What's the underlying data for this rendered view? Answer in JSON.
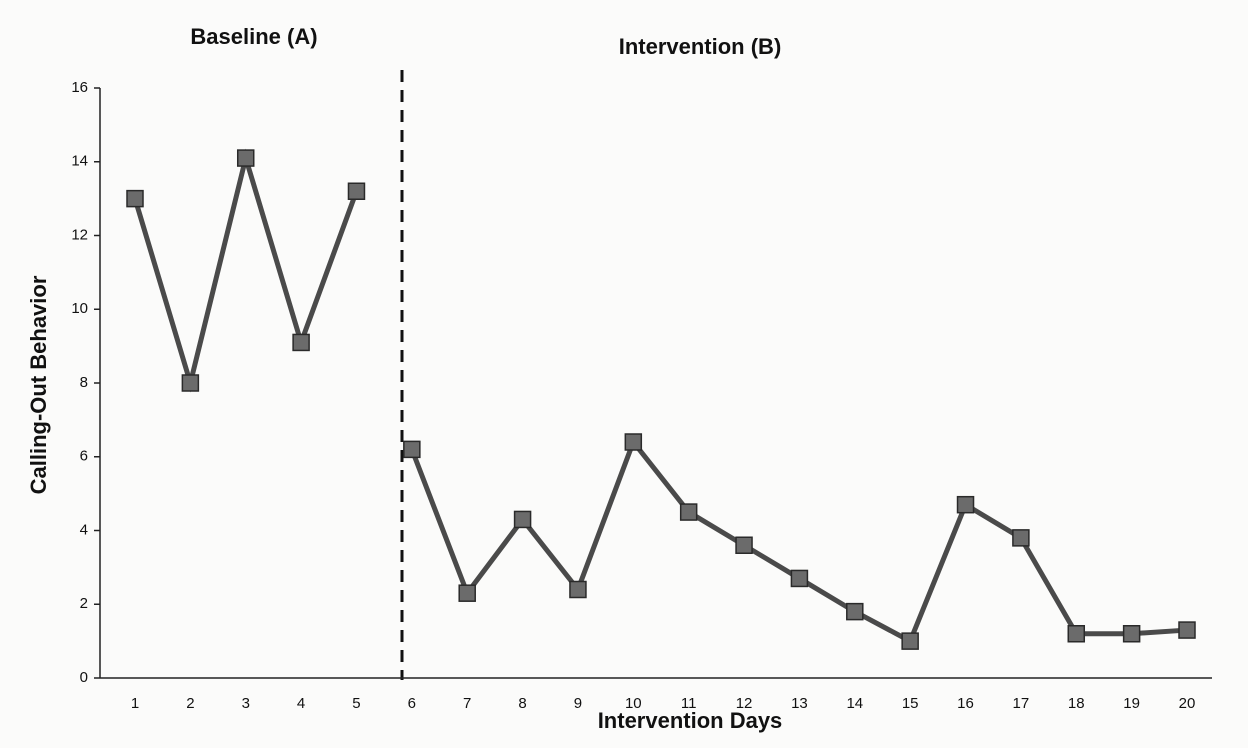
{
  "chart_data": {
    "type": "line",
    "x_label": "Intervention Days",
    "y_label": "Calling-Out Behavior",
    "categories": [
      "1",
      "2",
      "3",
      "4",
      "5",
      "6",
      "7",
      "8",
      "9",
      "10",
      "11",
      "12",
      "13",
      "14",
      "15",
      "16",
      "17",
      "18",
      "19",
      "20"
    ],
    "series": [
      {
        "name": "Baseline (A)",
        "color": "#4a4a4a",
        "values": [
          13,
          8,
          14.1,
          9.1,
          13.2,
          null,
          null,
          null,
          null,
          null,
          null,
          null,
          null,
          null,
          null,
          null,
          null,
          null,
          null,
          null
        ]
      },
      {
        "name": "Intervention (B)",
        "color": "#4a4a4a",
        "values": [
          null,
          null,
          null,
          null,
          null,
          6.2,
          2.3,
          4.3,
          2.4,
          6.4,
          4.5,
          3.6,
          2.7,
          1.8,
          1.0,
          4.7,
          3.8,
          1.2,
          1.2,
          1.3
        ]
      }
    ],
    "ylim": [
      0,
      16
    ],
    "yticks": [
      0,
      2,
      4,
      6,
      8,
      10,
      12,
      14,
      16
    ]
  }
}
